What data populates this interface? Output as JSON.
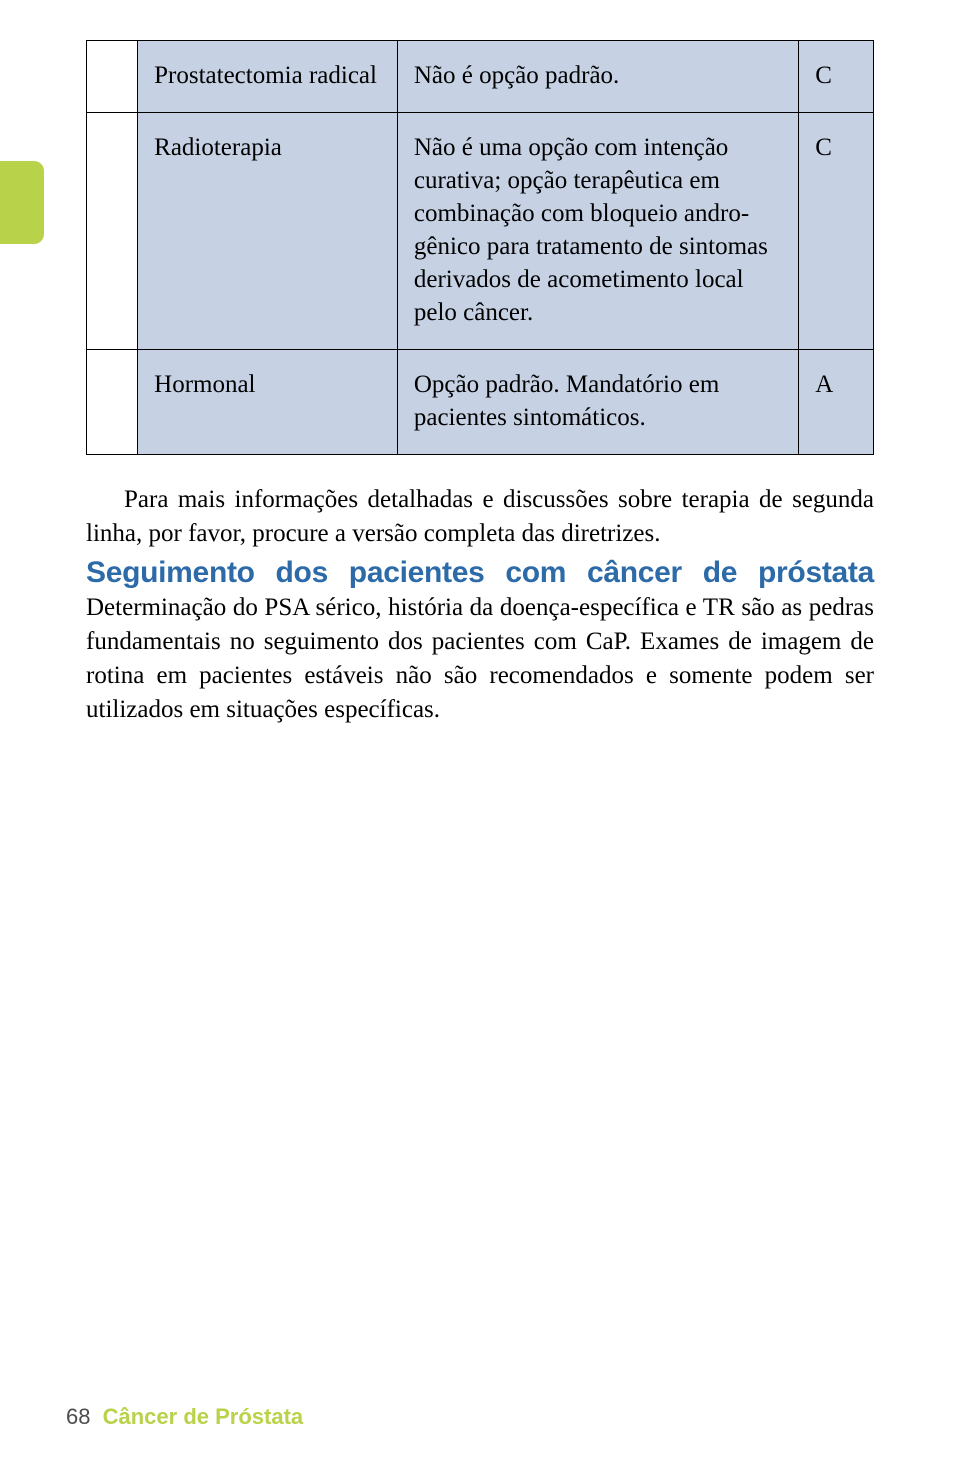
{
  "colors": {
    "side_tab": "#b8d24a",
    "cell_blue": "#c6d2e4",
    "heading_blue": "#2d6aa8",
    "footer_title": "#b8d24a",
    "footer_num": "#4c4c4c",
    "border": "#000000",
    "text": "#000000",
    "background": "#ffffff"
  },
  "table": {
    "column_widths_pct": [
      6.5,
      33,
      51,
      9.5
    ],
    "cell_fontsize_pt": 25,
    "rows": [
      {
        "c0": "",
        "c1": "Prostatectomia radical",
        "c2": "Não é opção padrão.",
        "c3": "C"
      },
      {
        "c0": "",
        "c1": "Radioterapia",
        "c2": "Não é uma opção com intenção cura­tiva; opção terapêutica em combinação com bloqueio andro­gênico para tratamento de sintomas deriva­dos de acometi­mento local pelo câncer.",
        "c3": "C"
      },
      {
        "c0": "",
        "c1": "Hormonal",
        "c2": "Opção padrão. Mandatório em pacientes sinto­máticos.",
        "c3": "A"
      }
    ]
  },
  "paragraph1": "Para mais informações detalhadas e discussões sobre terapia de segunda linha, por favor, procure a versão completa das diretrizes.",
  "heading": "Seguimento dos pacientes com câncer de próstata",
  "paragraph2": "Determinação do PSA sérico, história da doença-específica e TR são as pedras fundamentais no seguimento dos pacientes com CaP. Exames de imagem de rotina em pacientes estáveis não são recomendados e somente podem ser utilizados em situações específicas.",
  "footer": {
    "page_number": "68",
    "title": "Câncer de Próstata"
  }
}
